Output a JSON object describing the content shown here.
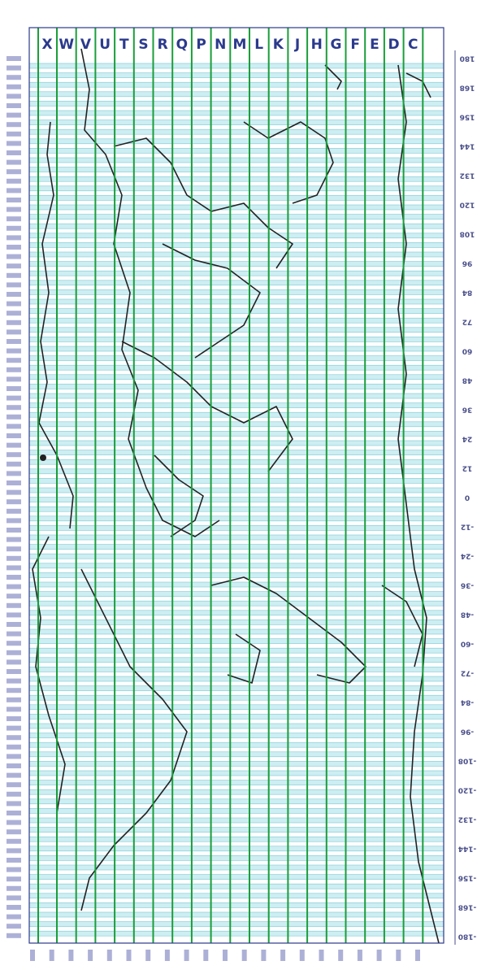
{
  "map": {
    "column_letters": [
      "X",
      "W",
      "V",
      "U",
      "T",
      "S",
      "R",
      "Q",
      "P",
      "N",
      "M",
      "L",
      "K",
      "J",
      "H",
      "G",
      "F",
      "E",
      "D",
      "C"
    ],
    "right_scale_labels": [
      "180",
      "168",
      "156",
      "144",
      "132",
      "120",
      "108",
      "96",
      "84",
      "72",
      "60",
      "48",
      "36",
      "24",
      "12",
      "0",
      "-12",
      "-24",
      "-36",
      "-48",
      "-60",
      "-72",
      "-84",
      "-96",
      "-108",
      "-120",
      "-132",
      "-144",
      "-156",
      "-168",
      "-180"
    ],
    "colors": {
      "grid_line": "#1a9e3a",
      "band_fill": "#cdeef2",
      "band_stroke": "#7cc8d4",
      "coast": "#222222",
      "letters": "#2b3a8c",
      "scale_text": "#4a4f8a",
      "left_labels": "#6a6fb5"
    }
  }
}
